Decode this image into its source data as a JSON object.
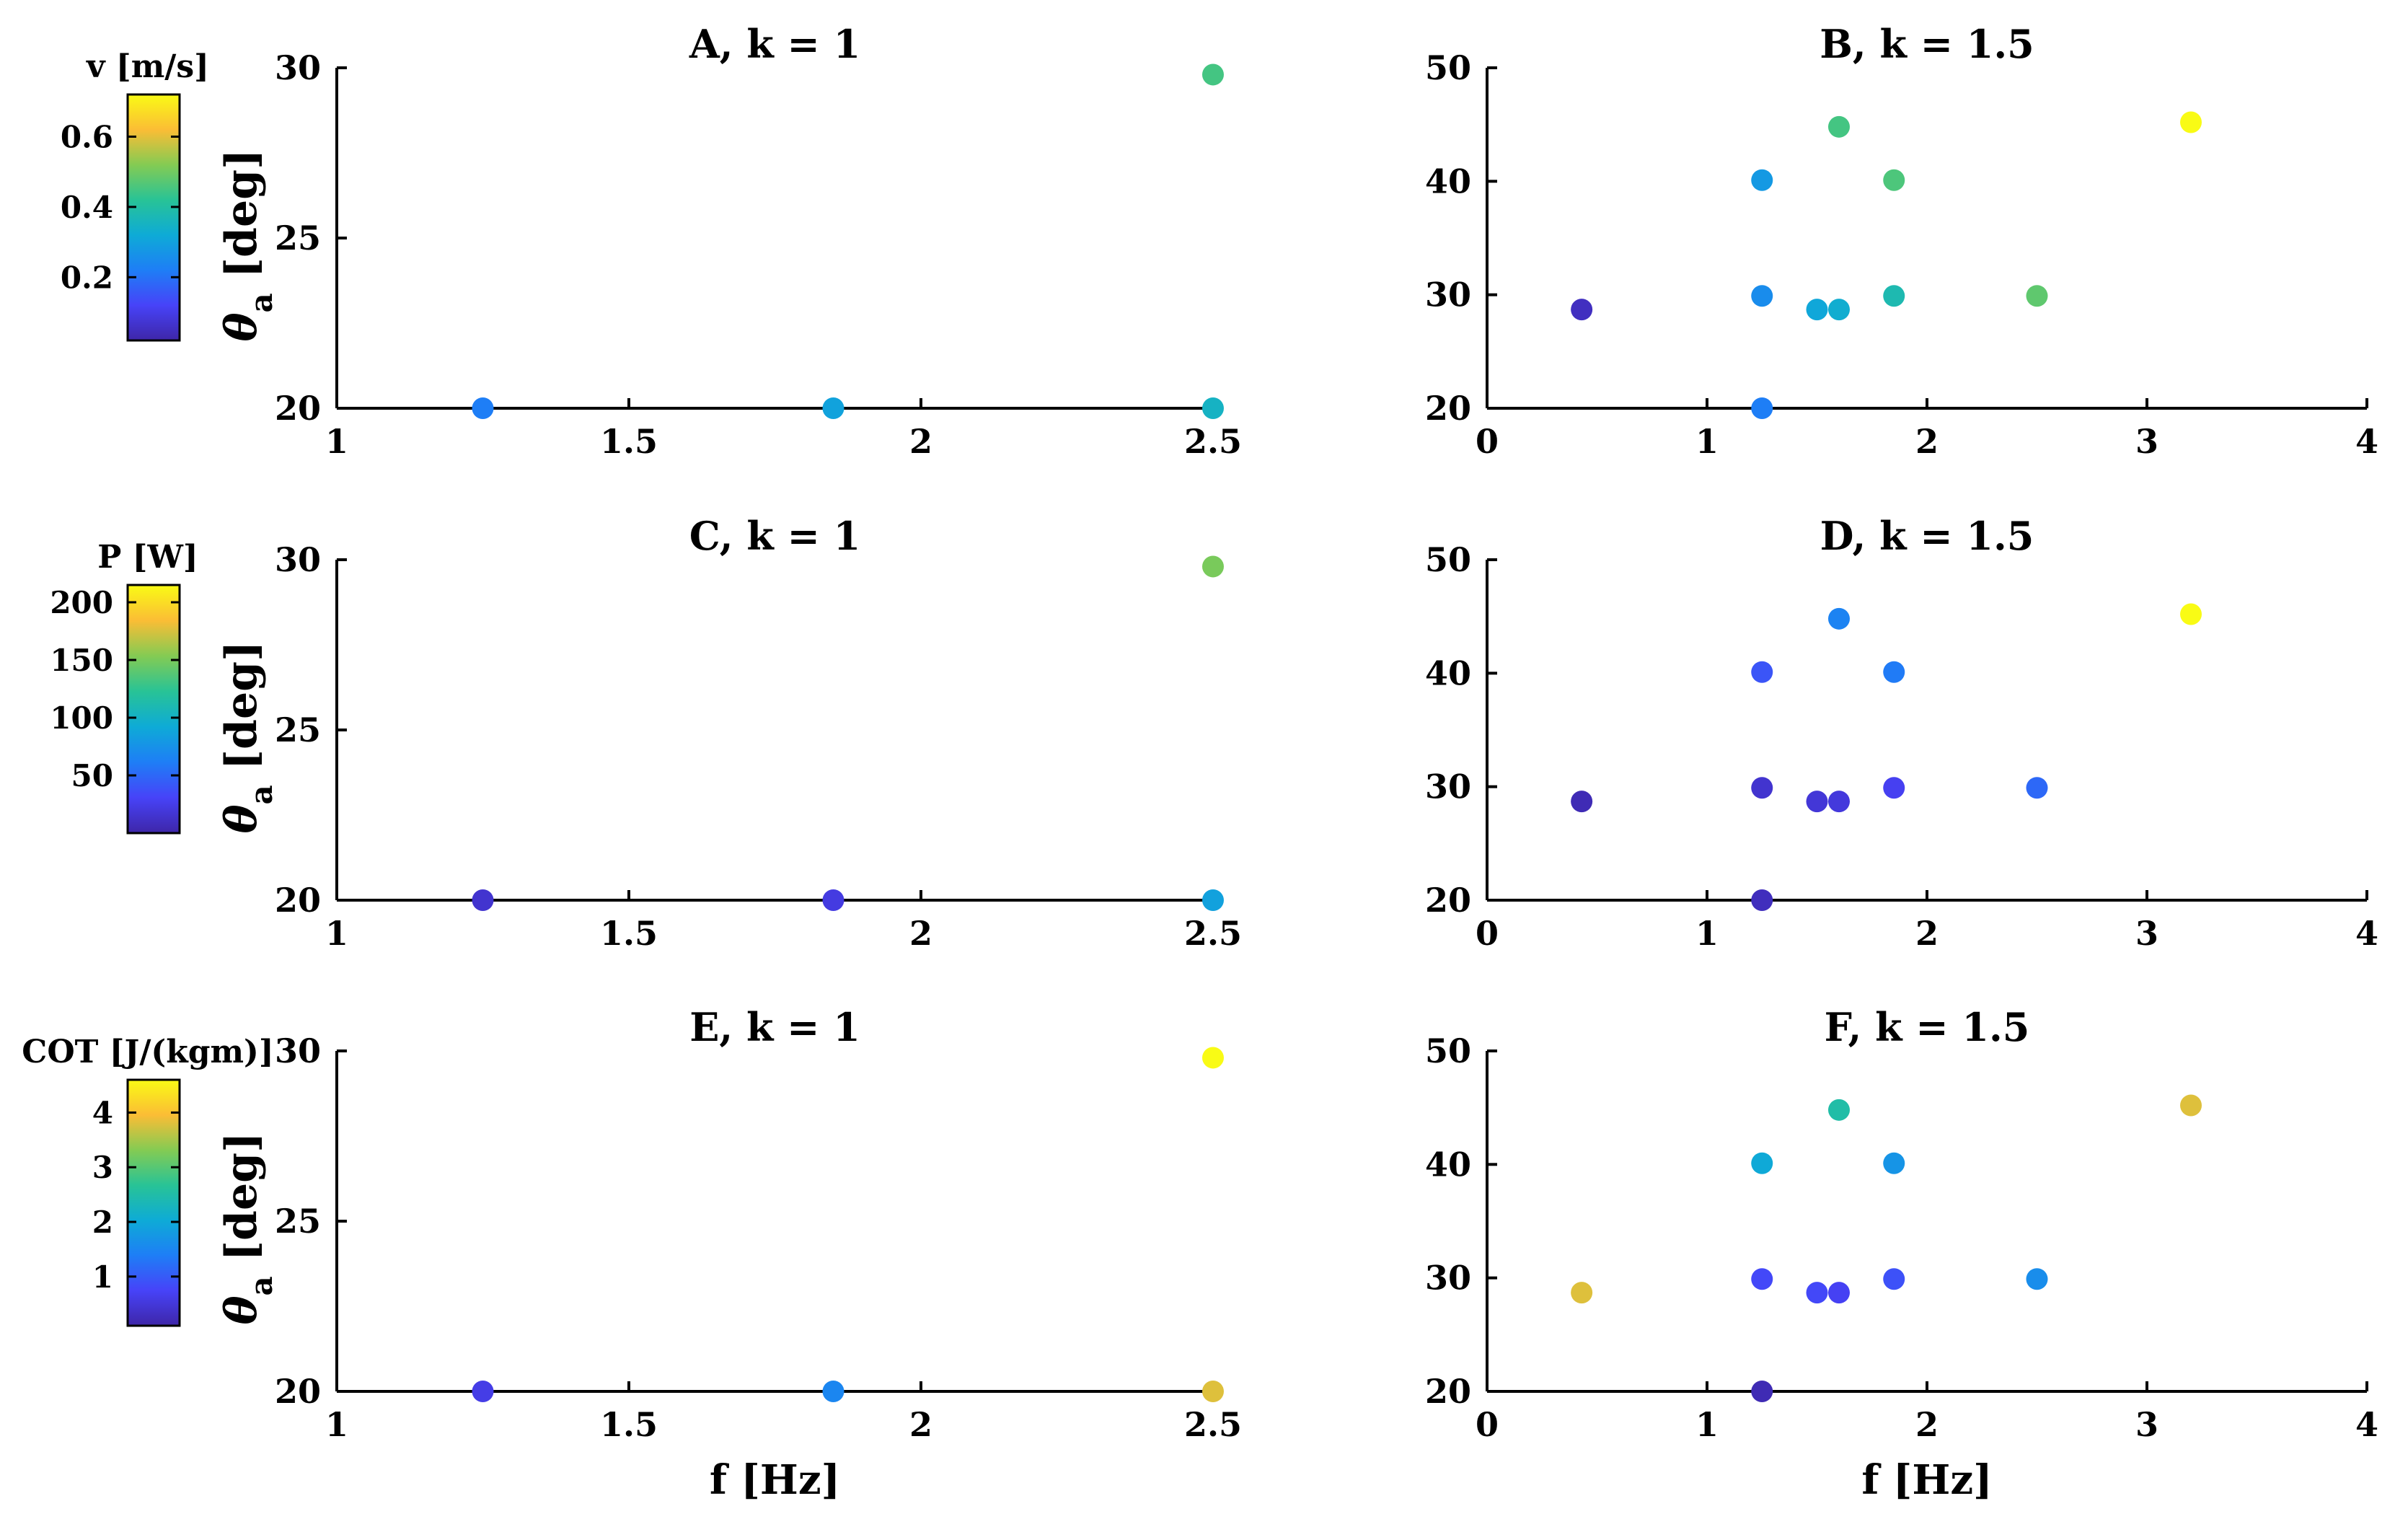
{
  "chart_data": [
    {
      "id": "A",
      "type": "scatter",
      "title": "A, k = 1",
      "xlabel": "",
      "ylabel": "θa [deg]",
      "xlim": [
        1,
        2.5
      ],
      "ylim": [
        20,
        30
      ],
      "xticks": [
        1,
        1.5,
        2,
        2.5
      ],
      "xtick_labels": [
        "1",
        "1.5",
        "2",
        "2.5"
      ],
      "yticks": [
        20,
        25,
        30
      ],
      "ytick_labels": [
        "20",
        "25",
        "30"
      ],
      "colorbar": {
        "label": "v [m/s]",
        "min": 0.02,
        "max": 0.72,
        "ticks": [
          0.2,
          0.4,
          0.6
        ],
        "tick_labels": [
          "0.2",
          "0.4",
          "0.6"
        ]
      },
      "points": [
        {
          "x": 1.25,
          "y": 20,
          "c": 0.22
        },
        {
          "x": 1.85,
          "y": 20,
          "c": 0.3
        },
        {
          "x": 2.5,
          "y": 20,
          "c": 0.35
        },
        {
          "x": 2.5,
          "y": 29.8,
          "c": 0.45
        }
      ]
    },
    {
      "id": "B",
      "type": "scatter",
      "title": "B, k = 1.5",
      "xlabel": "",
      "ylabel": "",
      "xlim": [
        0,
        4
      ],
      "ylim": [
        20,
        50
      ],
      "xticks": [
        0,
        1,
        2,
        3,
        4
      ],
      "xtick_labels": [
        "0",
        "1",
        "2",
        "3",
        "4"
      ],
      "yticks": [
        20,
        30,
        40,
        50
      ],
      "ytick_labels": [
        "20",
        "30",
        "40",
        "50"
      ],
      "cmin": 0.02,
      "cmax": 0.72,
      "points": [
        {
          "x": 0.43,
          "y": 28.7,
          "c": 0.05
        },
        {
          "x": 1.25,
          "y": 20,
          "c": 0.22
        },
        {
          "x": 1.25,
          "y": 29.9,
          "c": 0.25
        },
        {
          "x": 1.25,
          "y": 40.1,
          "c": 0.28
        },
        {
          "x": 1.5,
          "y": 28.7,
          "c": 0.31
        },
        {
          "x": 1.6,
          "y": 28.7,
          "c": 0.33
        },
        {
          "x": 1.6,
          "y": 44.8,
          "c": 0.45
        },
        {
          "x": 1.85,
          "y": 29.9,
          "c": 0.38
        },
        {
          "x": 1.85,
          "y": 40.1,
          "c": 0.46
        },
        {
          "x": 2.5,
          "y": 29.9,
          "c": 0.48
        },
        {
          "x": 3.2,
          "y": 45.2,
          "c": 0.72
        }
      ]
    },
    {
      "id": "C",
      "type": "scatter",
      "title": "C, k = 1",
      "xlabel": "",
      "ylabel": "θa [deg]",
      "xlim": [
        1,
        2.5
      ],
      "ylim": [
        20,
        30
      ],
      "xticks": [
        1,
        1.5,
        2,
        2.5
      ],
      "xtick_labels": [
        "1",
        "1.5",
        "2",
        "2.5"
      ],
      "yticks": [
        20,
        25,
        30
      ],
      "ytick_labels": [
        "20",
        "25",
        "30"
      ],
      "colorbar": {
        "label": "P [W]",
        "min": 0,
        "max": 215,
        "ticks": [
          50,
          100,
          150,
          200
        ],
        "tick_labels": [
          "50",
          "100",
          "150",
          "200"
        ]
      },
      "points": [
        {
          "x": 1.25,
          "y": 20,
          "c": 15
        },
        {
          "x": 1.85,
          "y": 20,
          "c": 22
        },
        {
          "x": 2.5,
          "y": 20,
          "c": 85
        },
        {
          "x": 2.5,
          "y": 29.8,
          "c": 150
        }
      ]
    },
    {
      "id": "D",
      "type": "scatter",
      "title": "D, k = 1.5",
      "xlabel": "",
      "ylabel": "",
      "xlim": [
        0,
        4
      ],
      "ylim": [
        20,
        50
      ],
      "xticks": [
        0,
        1,
        2,
        3,
        4
      ],
      "xtick_labels": [
        "0",
        "1",
        "2",
        "3",
        "4"
      ],
      "yticks": [
        20,
        30,
        40,
        50
      ],
      "ytick_labels": [
        "20",
        "30",
        "40",
        "50"
      ],
      "cmin": 0,
      "cmax": 215,
      "points": [
        {
          "x": 0.43,
          "y": 28.7,
          "c": 5
        },
        {
          "x": 1.25,
          "y": 20,
          "c": 8
        },
        {
          "x": 1.25,
          "y": 29.9,
          "c": 15
        },
        {
          "x": 1.25,
          "y": 40.1,
          "c": 40
        },
        {
          "x": 1.5,
          "y": 28.7,
          "c": 18
        },
        {
          "x": 1.6,
          "y": 28.7,
          "c": 20
        },
        {
          "x": 1.6,
          "y": 44.8,
          "c": 65
        },
        {
          "x": 1.85,
          "y": 29.9,
          "c": 28
        },
        {
          "x": 1.85,
          "y": 40.1,
          "c": 60
        },
        {
          "x": 2.5,
          "y": 29.9,
          "c": 50
        },
        {
          "x": 3.2,
          "y": 45.2,
          "c": 215
        }
      ]
    },
    {
      "id": "E",
      "type": "scatter",
      "title": "E, k = 1",
      "xlabel": "f [Hz]",
      "ylabel": "θa [deg]",
      "xlim": [
        1,
        2.5
      ],
      "ylim": [
        20,
        30
      ],
      "xticks": [
        1,
        1.5,
        2,
        2.5
      ],
      "xtick_labels": [
        "1",
        "1.5",
        "2",
        "2.5"
      ],
      "yticks": [
        20,
        25,
        30
      ],
      "ytick_labels": [
        "20",
        "25",
        "30"
      ],
      "colorbar": {
        "label": "COT [J/(kgm)]",
        "min": 0.1,
        "max": 4.6,
        "ticks": [
          1,
          2,
          3,
          4
        ],
        "tick_labels": [
          "1",
          "2",
          "3",
          "4"
        ]
      },
      "points": [
        {
          "x": 1.25,
          "y": 20,
          "c": 0.6
        },
        {
          "x": 1.85,
          "y": 20,
          "c": 1.5
        },
        {
          "x": 2.5,
          "y": 20,
          "c": 3.8
        },
        {
          "x": 2.5,
          "y": 29.8,
          "c": 4.6
        }
      ]
    },
    {
      "id": "F",
      "type": "scatter",
      "title": "F, k = 1.5",
      "xlabel": "f [Hz]",
      "ylabel": "",
      "xlim": [
        0,
        4
      ],
      "ylim": [
        20,
        50
      ],
      "xticks": [
        0,
        1,
        2,
        3,
        4
      ],
      "xtick_labels": [
        "0",
        "1",
        "2",
        "3",
        "4"
      ],
      "yticks": [
        20,
        30,
        40,
        50
      ],
      "ytick_labels": [
        "20",
        "30",
        "40",
        "50"
      ],
      "cmin": 0.1,
      "cmax": 4.6,
      "points": [
        {
          "x": 0.43,
          "y": 28.7,
          "c": 3.8
        },
        {
          "x": 1.25,
          "y": 20,
          "c": 0.2
        },
        {
          "x": 1.25,
          "y": 29.9,
          "c": 0.8
        },
        {
          "x": 1.25,
          "y": 40.1,
          "c": 2.0
        },
        {
          "x": 1.5,
          "y": 28.7,
          "c": 0.8
        },
        {
          "x": 1.6,
          "y": 28.7,
          "c": 0.7
        },
        {
          "x": 1.6,
          "y": 44.8,
          "c": 2.5
        },
        {
          "x": 1.85,
          "y": 29.9,
          "c": 0.9
        },
        {
          "x": 1.85,
          "y": 40.1,
          "c": 1.7
        },
        {
          "x": 2.5,
          "y": 29.9,
          "c": 1.6
        },
        {
          "x": 3.2,
          "y": 45.2,
          "c": 3.8
        }
      ]
    }
  ]
}
